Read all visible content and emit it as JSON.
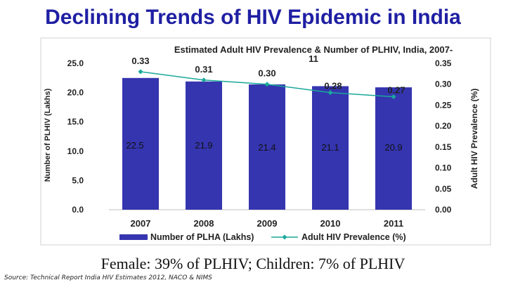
{
  "slide": {
    "title": "Declining Trends of HIV Epidemic in India",
    "caption": "Female: 39% of PLHIV; Children: 7% of PLHIV",
    "source": "Source: Technical Report India HIV Estimates 2012, NACO & NIMS"
  },
  "chart_data": {
    "type": "bar",
    "title": "Estimated Adult HIV Prevalence & Number of PLHIV, India, 2007-11",
    "title_lines": [
      "Estimated Adult HIV Prevalence & Number of PLHIV, India, 2007-",
      "11"
    ],
    "categories": [
      "2007",
      "2008",
      "2009",
      "2010",
      "2011"
    ],
    "ylabel": "Number of PLHIV (Lakhs)",
    "ylabel_right": "Adult HIV Prevalence (%)",
    "ylim": [
      0,
      25
    ],
    "ylim_right": [
      0,
      0.35
    ],
    "y_ticks": [
      "0.0",
      "5.0",
      "10.0",
      "15.0",
      "20.0",
      "25.0"
    ],
    "y_ticks_right": [
      "0.00",
      "0.05",
      "0.10",
      "0.15",
      "0.20",
      "0.25",
      "0.30",
      "0.35"
    ],
    "grid": false,
    "legend_position": "bottom",
    "series": [
      {
        "name": "Number of PLHA (Lakhs)",
        "type": "bar",
        "axis": "left",
        "values": [
          22.5,
          21.9,
          21.4,
          21.1,
          20.9
        ],
        "labels": [
          "22.5",
          "21.9",
          "21.4",
          "21.1",
          "20.9"
        ],
        "color": "#3535b0"
      },
      {
        "name": "Adult HIV Prevalence (%)",
        "type": "line",
        "axis": "right",
        "values": [
          0.33,
          0.31,
          0.3,
          0.28,
          0.27
        ],
        "labels": [
          "0.33",
          "0.31",
          "0.30",
          "0.28",
          "0.27"
        ],
        "color": "#1aa89a"
      }
    ]
  }
}
